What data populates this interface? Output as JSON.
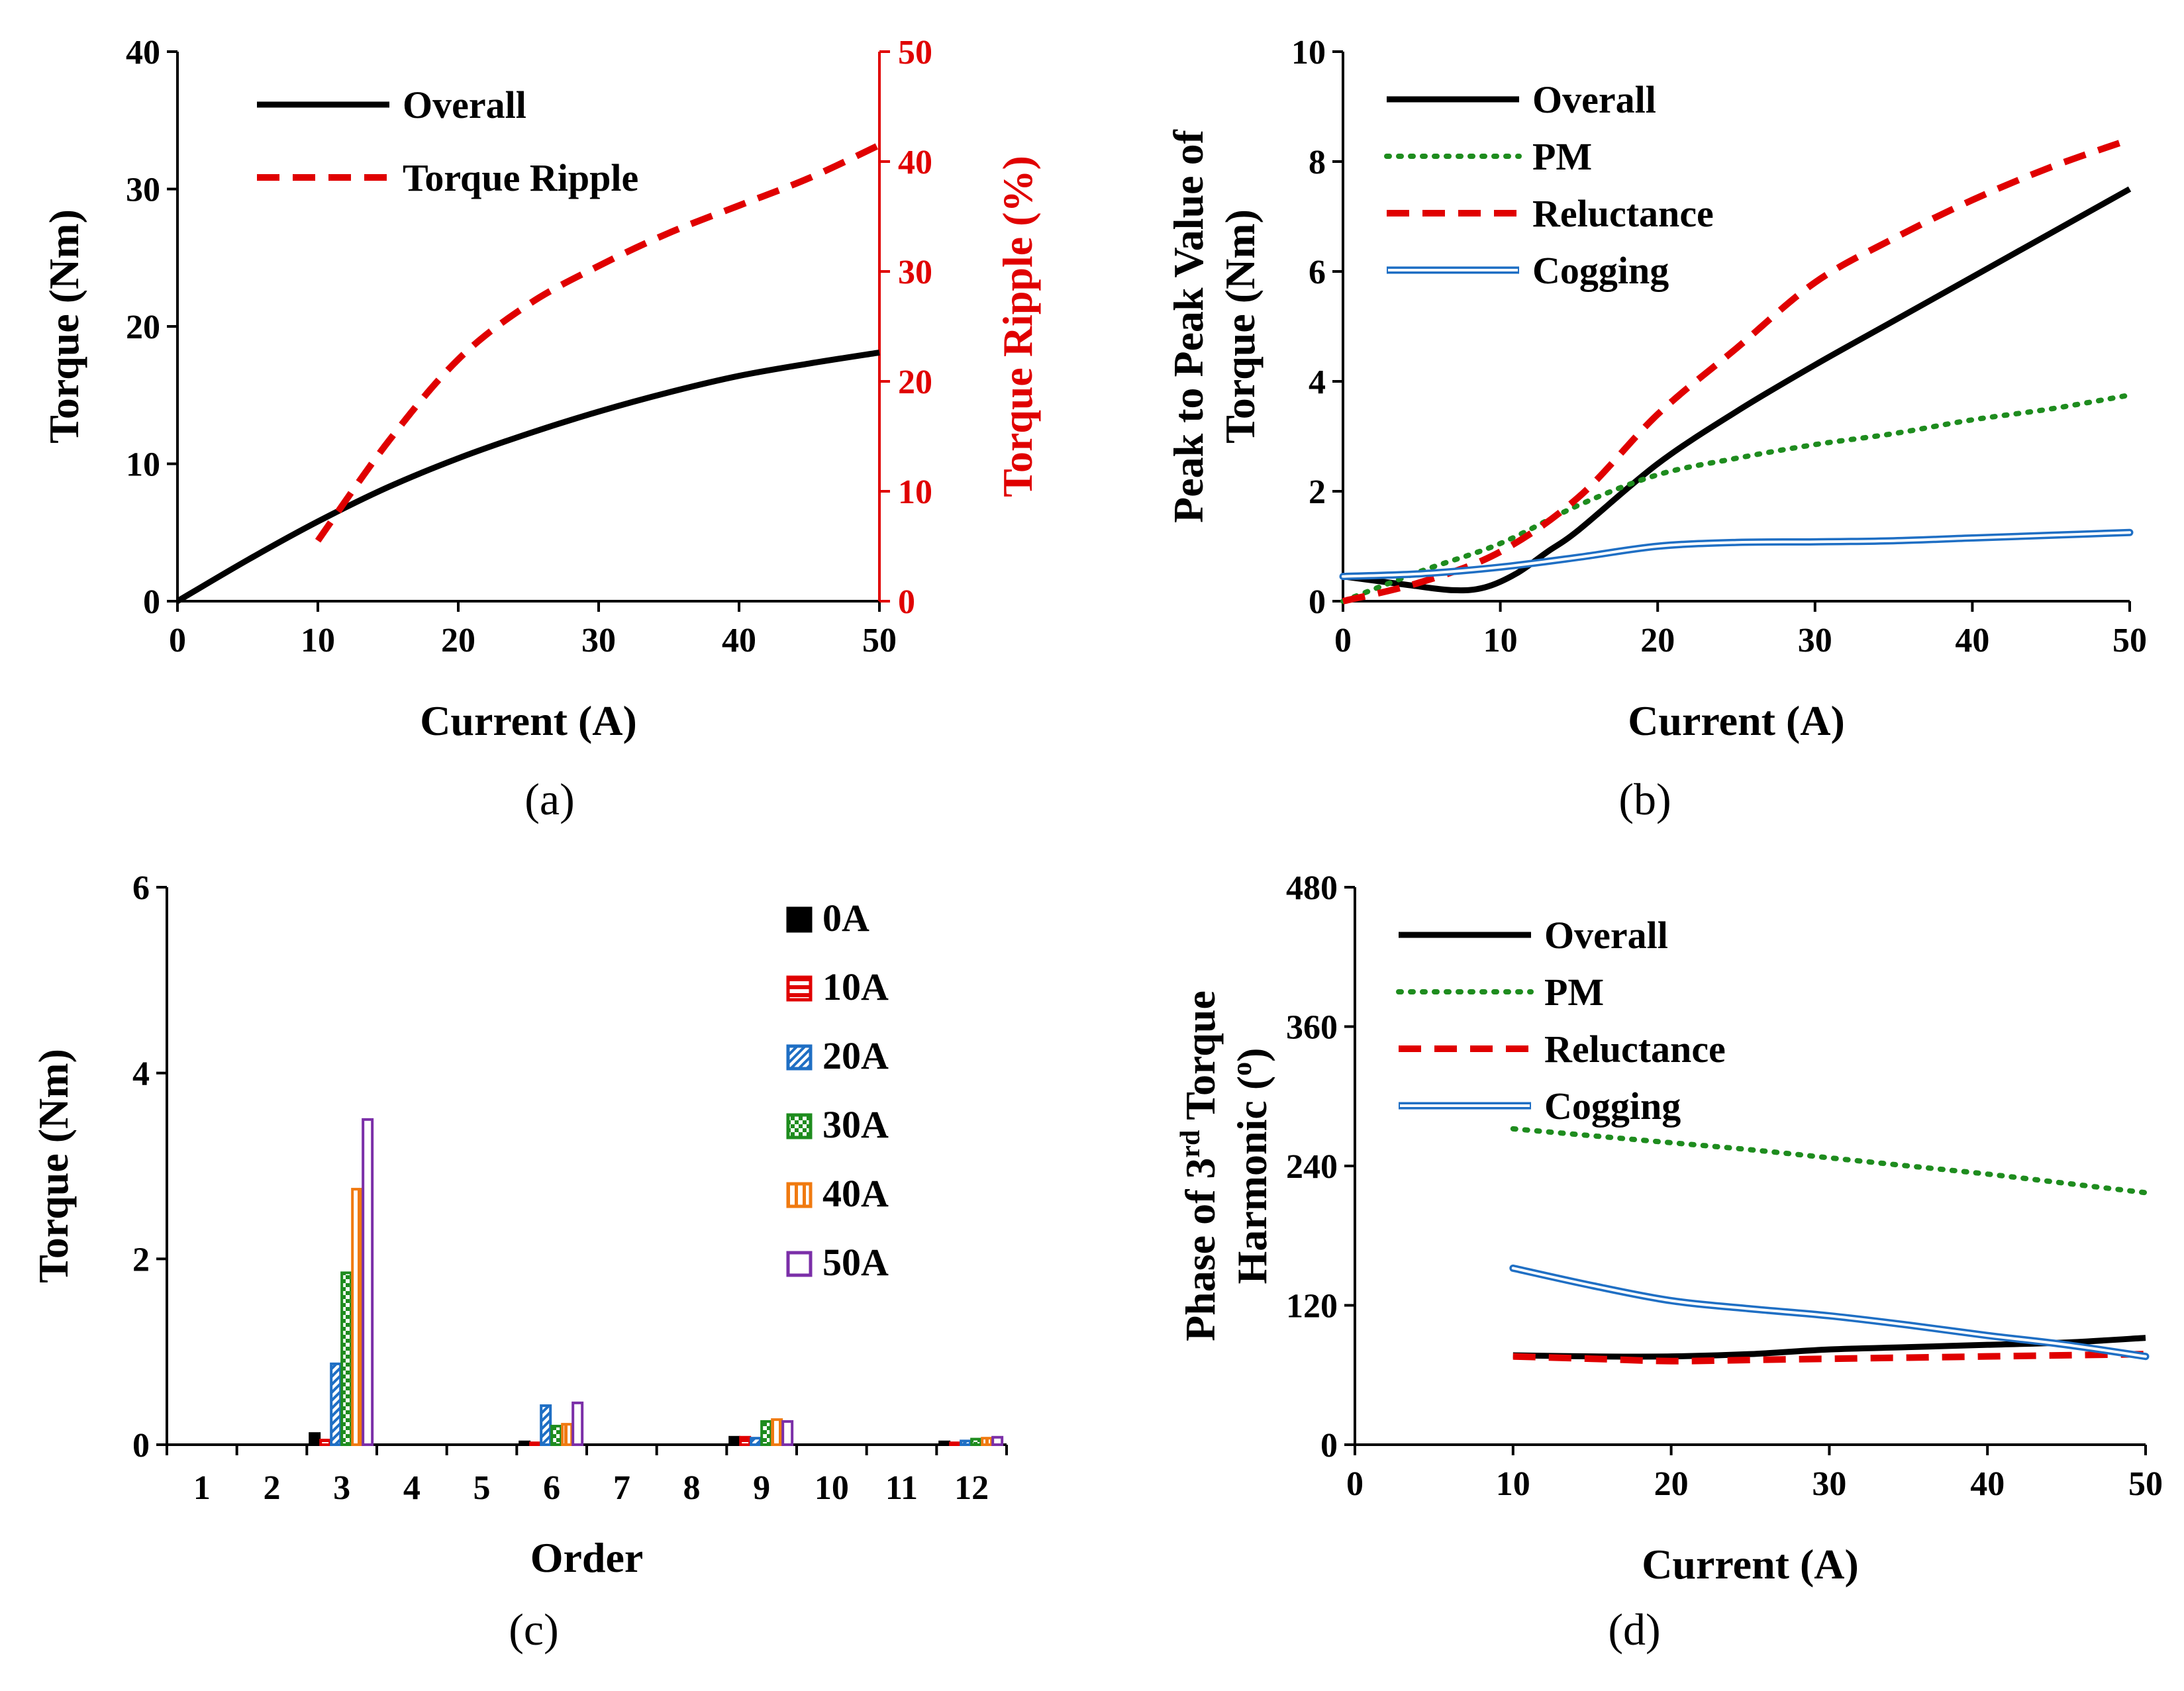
{
  "chart_data": [
    {
      "id": "a",
      "type": "line",
      "panel_label": "(a)",
      "xlabel": "Current (A)",
      "ylabel": "Torque (Nm)",
      "y2label": "Torque Ripple (%)",
      "xlim": [
        0,
        50
      ],
      "ylim": [
        0,
        40
      ],
      "y2lim": [
        0,
        50
      ],
      "xticks": [
        0,
        10,
        20,
        30,
        40,
        50
      ],
      "yticks": [
        0,
        10,
        20,
        30,
        40
      ],
      "y2ticks": [
        0,
        10,
        20,
        30,
        40,
        50
      ],
      "legend_position": "top-left",
      "series": [
        {
          "name": "Overall",
          "axis": "y",
          "color": "#000000",
          "style": "solid",
          "x": [
            0,
            5,
            10,
            15,
            20,
            25,
            30,
            35,
            40,
            45,
            50
          ],
          "y": [
            0,
            3.0,
            5.8,
            8.3,
            10.4,
            12.2,
            13.8,
            15.2,
            16.4,
            17.3,
            18.1
          ]
        },
        {
          "name": "Torque Ripple",
          "axis": "y2",
          "color": "#e00000",
          "style": "dashed",
          "x": [
            10,
            15,
            20,
            25,
            30,
            35,
            40,
            45,
            50
          ],
          "y": [
            5.5,
            14.5,
            22.0,
            27.0,
            30.5,
            33.5,
            36.0,
            38.5,
            41.5
          ]
        }
      ]
    },
    {
      "id": "b",
      "type": "line",
      "panel_label": "(b)",
      "xlabel": "Current (A)",
      "ylabel": [
        "Peak to Peak Value of",
        "Torque (Nm)"
      ],
      "xlim": [
        0,
        50
      ],
      "ylim": [
        0,
        10
      ],
      "xticks": [
        0,
        10,
        20,
        30,
        40,
        50
      ],
      "yticks": [
        0,
        2,
        4,
        6,
        8,
        10
      ],
      "legend_position": "top-left",
      "series": [
        {
          "name": "Overall",
          "color": "#000000",
          "style": "solid",
          "x": [
            0,
            4,
            7,
            9,
            11,
            13,
            15,
            20,
            25,
            30,
            35,
            40,
            45,
            50
          ],
          "y": [
            0.45,
            0.3,
            0.2,
            0.25,
            0.5,
            0.9,
            1.3,
            2.5,
            3.45,
            4.3,
            5.1,
            5.9,
            6.7,
            7.5
          ]
        },
        {
          "name": "PM",
          "color": "#1e8c1e",
          "style": "dotted",
          "x": [
            0,
            5,
            10,
            15,
            20,
            25,
            30,
            35,
            40,
            45,
            50
          ],
          "y": [
            0,
            0.55,
            1.05,
            1.75,
            2.3,
            2.6,
            2.85,
            3.05,
            3.3,
            3.5,
            3.75
          ]
        },
        {
          "name": "Reluctance",
          "color": "#e00000",
          "style": "dashed",
          "x": [
            0,
            5,
            10,
            15,
            20,
            25,
            30,
            35,
            40,
            45,
            50
          ],
          "y": [
            0,
            0.35,
            0.9,
            1.9,
            3.4,
            4.6,
            5.8,
            6.6,
            7.3,
            7.9,
            8.4
          ]
        },
        {
          "name": "Cogging",
          "color": "#1f6fc4",
          "style": "double",
          "x": [
            0,
            5,
            10,
            15,
            20,
            25,
            30,
            35,
            40,
            45,
            50
          ],
          "y": [
            0.45,
            0.5,
            0.62,
            0.8,
            1.0,
            1.07,
            1.08,
            1.1,
            1.15,
            1.2,
            1.25
          ]
        }
      ]
    },
    {
      "id": "c",
      "type": "bar",
      "panel_label": "(c)",
      "xlabel": "Order",
      "ylabel": "Torque (Nm)",
      "ylim": [
        0,
        6
      ],
      "yticks": [
        0,
        2,
        4,
        6
      ],
      "categories": [
        "1",
        "2",
        "3",
        "4",
        "5",
        "6",
        "7",
        "8",
        "9",
        "10",
        "11",
        "12"
      ],
      "legend_position": "top-right",
      "series": [
        {
          "name": "0A",
          "color": "#000000",
          "fill": "solid",
          "values": [
            0,
            0,
            0.12,
            0,
            0,
            0.03,
            0,
            0,
            0.08,
            0,
            0,
            0.03
          ]
        },
        {
          "name": "10A",
          "color": "#e00000",
          "fill": "hatch-horizontal",
          "values": [
            0,
            0,
            0.05,
            0,
            0,
            0.02,
            0,
            0,
            0.08,
            0,
            0,
            0.02
          ]
        },
        {
          "name": "20A",
          "color": "#1f6fc4",
          "fill": "hatch-diagonal",
          "values": [
            0,
            0,
            0.87,
            0,
            0,
            0.42,
            0,
            0,
            0.07,
            0,
            0,
            0.04
          ]
        },
        {
          "name": "30A",
          "color": "#1e8c1e",
          "fill": "checker",
          "values": [
            0,
            0,
            1.85,
            0,
            0,
            0.2,
            0,
            0,
            0.25,
            0,
            0,
            0.06
          ]
        },
        {
          "name": "40A",
          "color": "#f07a10",
          "fill": "hatch-vertical",
          "values": [
            0,
            0,
            2.75,
            0,
            0,
            0.22,
            0,
            0,
            0.27,
            0,
            0,
            0.07
          ]
        },
        {
          "name": "50A",
          "color": "#7b2fa8",
          "fill": "outline",
          "values": [
            0,
            0,
            3.5,
            0,
            0,
            0.45,
            0,
            0,
            0.25,
            0,
            0,
            0.08
          ]
        }
      ]
    },
    {
      "id": "d",
      "type": "line",
      "panel_label": "(d)",
      "xlabel": "Current (A)",
      "ylabel_parts": [
        "Phase of 3",
        "rd",
        " Torque"
      ],
      "ylabel_line2": "Harmonic (",
      "ylabel_sup": "o",
      "ylabel_end": ")",
      "xlim": [
        0,
        50
      ],
      "ylim": [
        0,
        480
      ],
      "xticks": [
        0,
        10,
        20,
        30,
        40,
        50
      ],
      "yticks": [
        0,
        120,
        240,
        360,
        480
      ],
      "legend_position": "top-left",
      "series": [
        {
          "name": "Overall",
          "color": "#000000",
          "style": "solid",
          "x": [
            10,
            15,
            20,
            25,
            30,
            35,
            40,
            45,
            50
          ],
          "y": [
            77,
            76,
            76,
            78,
            82,
            84,
            86,
            88,
            92
          ]
        },
        {
          "name": "PM",
          "color": "#1e8c1e",
          "style": "dotted",
          "x": [
            10,
            15,
            20,
            25,
            30,
            35,
            40,
            45,
            50
          ],
          "y": [
            272,
            266,
            260,
            254,
            247,
            240,
            233,
            225,
            217
          ]
        },
        {
          "name": "Reluctance",
          "color": "#e00000",
          "style": "dashed",
          "x": [
            10,
            15,
            20,
            25,
            30,
            35,
            40,
            45,
            50
          ],
          "y": [
            76,
            74,
            72,
            73,
            74,
            75,
            76,
            77,
            78
          ]
        },
        {
          "name": "Cogging",
          "color": "#1f6fc4",
          "style": "double",
          "x": [
            10,
            15,
            20,
            25,
            30,
            35,
            40,
            45,
            50
          ],
          "y": [
            152,
            137,
            124,
            117,
            111,
            103,
            94,
            86,
            76
          ]
        }
      ]
    }
  ]
}
